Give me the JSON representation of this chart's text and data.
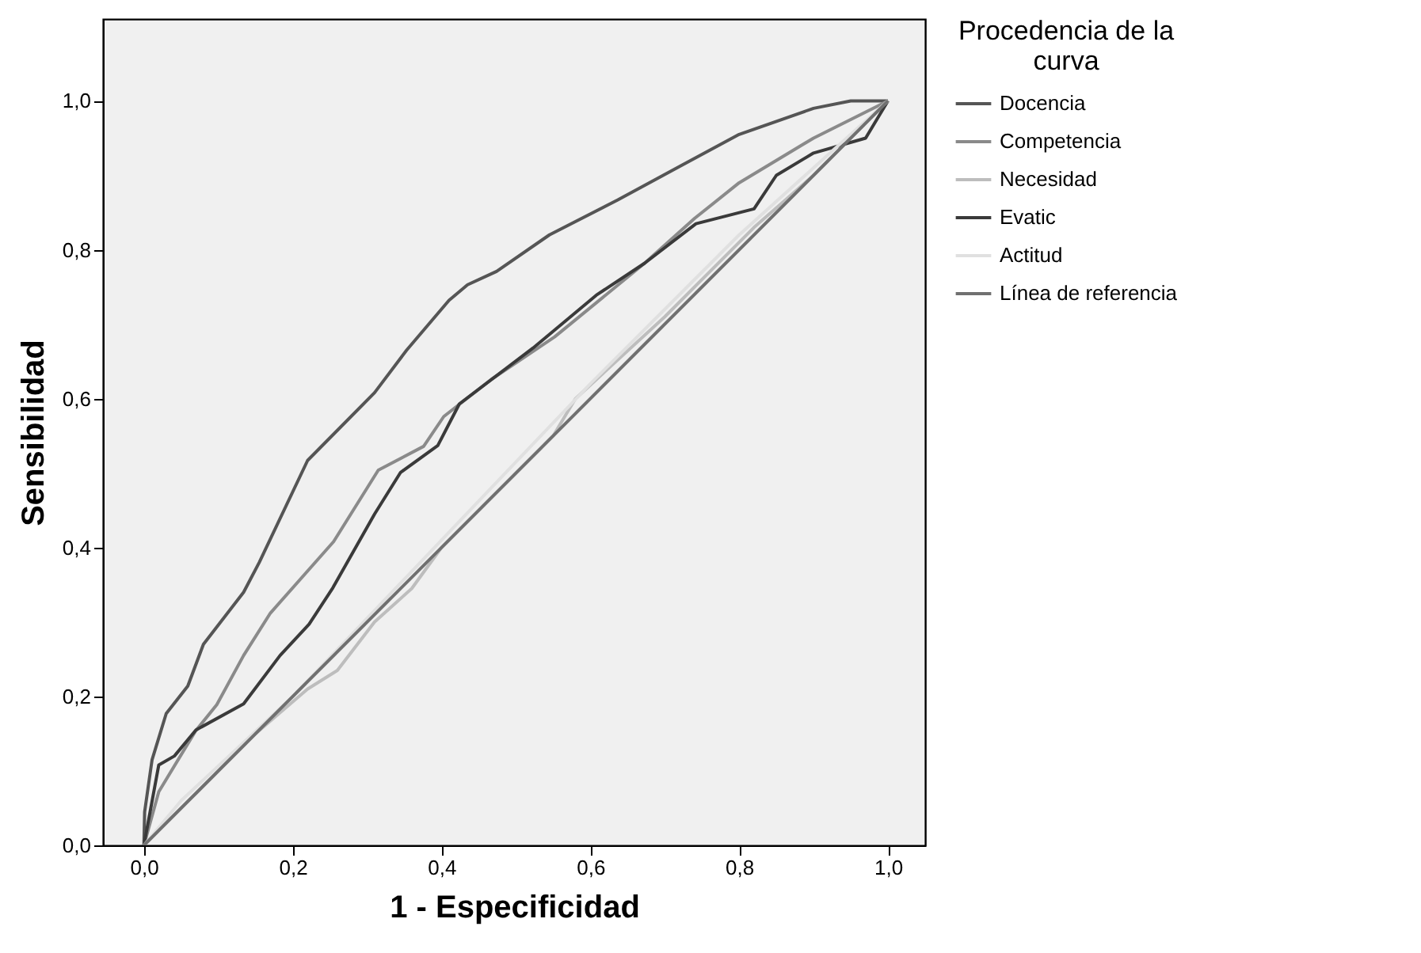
{
  "chart_data": {
    "type": "line",
    "xlabel": "1 - Especificidad",
    "ylabel": "Sensibilidad",
    "legend_title": "Procedencia de la curva",
    "legend": "top right",
    "grid": false,
    "marker": "none",
    "line_style": "solid",
    "xlim": [
      -0.055,
      1.05
    ],
    "ylim": [
      0,
      1.11
    ],
    "xticks": [
      {
        "value": 0,
        "label": "0,0"
      },
      {
        "value": 0.2,
        "label": "0,2"
      },
      {
        "value": 0.4,
        "label": "0,4"
      },
      {
        "value": 0.6,
        "label": "0,6"
      },
      {
        "value": 0.8,
        "label": "0,8"
      },
      {
        "value": 1,
        "label": "1,0"
      }
    ],
    "yticks": [
      {
        "value": 0,
        "label": "0,0"
      },
      {
        "value": 0.2,
        "label": "0,2"
      },
      {
        "value": 0.4,
        "label": "0,4"
      },
      {
        "value": 0.6,
        "label": "0,6"
      },
      {
        "value": 0.8,
        "label": "0,8"
      },
      {
        "value": 1,
        "label": "1,0"
      }
    ],
    "series": [
      {
        "name": "Docencia",
        "color": "#555555",
        "x": [
          0,
          0.001,
          0.011,
          0.03,
          0.059,
          0.08,
          0.134,
          0.155,
          0.22,
          0.31,
          0.353,
          0.41,
          0.435,
          0.474,
          0.545,
          0.637,
          0.722,
          0.8,
          0.9,
          0.95,
          1
        ],
        "values": [
          0,
          0.045,
          0.115,
          0.177,
          0.214,
          0.27,
          0.34,
          0.38,
          0.517,
          0.608,
          0.665,
          0.732,
          0.753,
          0.771,
          0.82,
          0.867,
          0.913,
          0.955,
          0.99,
          1,
          1
        ]
      },
      {
        "name": "Competencia",
        "color": "#8a8a8a",
        "x": [
          0,
          0.02,
          0.069,
          0.098,
          0.134,
          0.17,
          0.255,
          0.315,
          0.376,
          0.403,
          0.467,
          0.552,
          0.673,
          0.74,
          0.8,
          0.9,
          1
        ],
        "values": [
          0,
          0.072,
          0.153,
          0.189,
          0.255,
          0.312,
          0.408,
          0.504,
          0.536,
          0.576,
          0.626,
          0.683,
          0.782,
          0.842,
          0.89,
          0.95,
          1
        ]
      },
      {
        "name": "Necesidad",
        "color": "#bdbdbd",
        "x": [
          0,
          0.05,
          0.15,
          0.22,
          0.26,
          0.31,
          0.36,
          0.4,
          0.55,
          0.58,
          0.7,
          0.75,
          0.82,
          0.9,
          1
        ],
        "values": [
          0,
          0.05,
          0.15,
          0.21,
          0.235,
          0.3,
          0.345,
          0.4,
          0.55,
          0.6,
          0.71,
          0.76,
          0.83,
          0.9,
          1
        ]
      },
      {
        "name": "Evatic",
        "color": "#3a3a3a",
        "x": [
          0,
          0.02,
          0.041,
          0.07,
          0.134,
          0.183,
          0.222,
          0.254,
          0.31,
          0.345,
          0.395,
          0.424,
          0.523,
          0.608,
          0.673,
          0.742,
          0.82,
          0.85,
          0.9,
          0.97,
          1
        ],
        "values": [
          0,
          0.108,
          0.12,
          0.155,
          0.19,
          0.255,
          0.297,
          0.346,
          0.445,
          0.501,
          0.537,
          0.593,
          0.668,
          0.739,
          0.782,
          0.835,
          0.855,
          0.9,
          0.93,
          0.95,
          1
        ]
      },
      {
        "name": "Actitud",
        "color": "#e0e0e0",
        "x": [
          0,
          0.05,
          0.2,
          0.4,
          0.6,
          0.8,
          0.9,
          1
        ],
        "values": [
          0,
          0.06,
          0.2,
          0.41,
          0.62,
          0.82,
          0.91,
          1
        ]
      },
      {
        "name": "Línea de referencia",
        "color": "#707070",
        "x": [
          0,
          1
        ],
        "values": [
          0,
          1
        ]
      }
    ]
  }
}
